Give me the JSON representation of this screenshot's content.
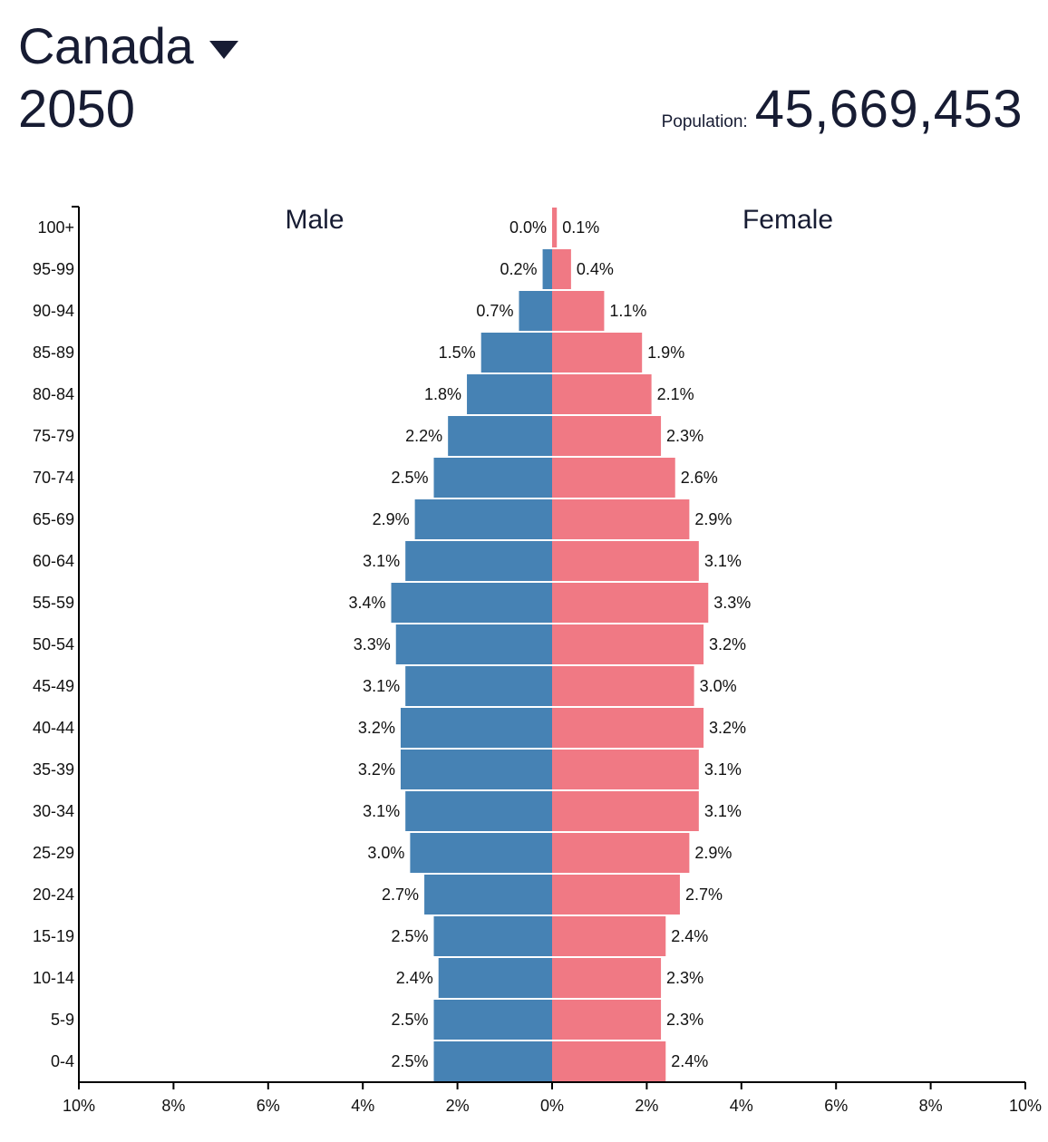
{
  "header": {
    "country": "Canada",
    "year": "2050",
    "population_label": "Population:",
    "population_value": "45,669,453"
  },
  "colors": {
    "male": "#4682b4",
    "female": "#f07984",
    "axis": "#000000"
  },
  "icons": {
    "country_dropdown": "caret-down-icon"
  },
  "chart_data": {
    "type": "bar",
    "orientation": "horizontal",
    "layout": "population-pyramid",
    "series_labels": {
      "male": "Male",
      "female": "Female"
    },
    "categories": [
      "100+",
      "95-99",
      "90-94",
      "85-89",
      "80-84",
      "75-79",
      "70-74",
      "65-69",
      "60-64",
      "55-59",
      "50-54",
      "45-49",
      "40-44",
      "35-39",
      "30-34",
      "25-29",
      "20-24",
      "15-19",
      "10-14",
      "5-9",
      "0-4"
    ],
    "series": [
      {
        "name": "Male",
        "side": "left",
        "values": [
          0.0,
          0.2,
          0.7,
          1.5,
          1.8,
          2.2,
          2.5,
          2.9,
          3.1,
          3.4,
          3.3,
          3.1,
          3.2,
          3.2,
          3.1,
          3.0,
          2.7,
          2.5,
          2.4,
          2.5,
          2.5
        ],
        "labels": [
          "0.0%",
          "0.2%",
          "0.7%",
          "1.5%",
          "1.8%",
          "2.2%",
          "2.5%",
          "2.9%",
          "3.1%",
          "3.4%",
          "3.3%",
          "3.1%",
          "3.2%",
          "3.2%",
          "3.1%",
          "3.0%",
          "2.7%",
          "2.5%",
          "2.4%",
          "2.5%",
          "2.5%"
        ]
      },
      {
        "name": "Female",
        "side": "right",
        "values": [
          0.1,
          0.4,
          1.1,
          1.9,
          2.1,
          2.3,
          2.6,
          2.9,
          3.1,
          3.3,
          3.2,
          3.0,
          3.2,
          3.1,
          3.1,
          2.9,
          2.7,
          2.4,
          2.3,
          2.3,
          2.4
        ],
        "labels": [
          "0.1%",
          "0.4%",
          "1.1%",
          "1.9%",
          "2.1%",
          "2.3%",
          "2.6%",
          "2.9%",
          "3.1%",
          "3.3%",
          "3.2%",
          "3.0%",
          "3.2%",
          "3.1%",
          "3.1%",
          "2.9%",
          "2.7%",
          "2.4%",
          "2.3%",
          "2.3%",
          "2.4%"
        ]
      }
    ],
    "x_ticks": [
      -10,
      -8,
      -6,
      -4,
      -2,
      0,
      2,
      4,
      6,
      8,
      10
    ],
    "x_tick_labels": [
      "10%",
      "8%",
      "6%",
      "4%",
      "2%",
      "0%",
      "2%",
      "4%",
      "6%",
      "8%",
      "10%"
    ],
    "xlim": [
      -10,
      10
    ],
    "grid": false,
    "legend": "none"
  }
}
